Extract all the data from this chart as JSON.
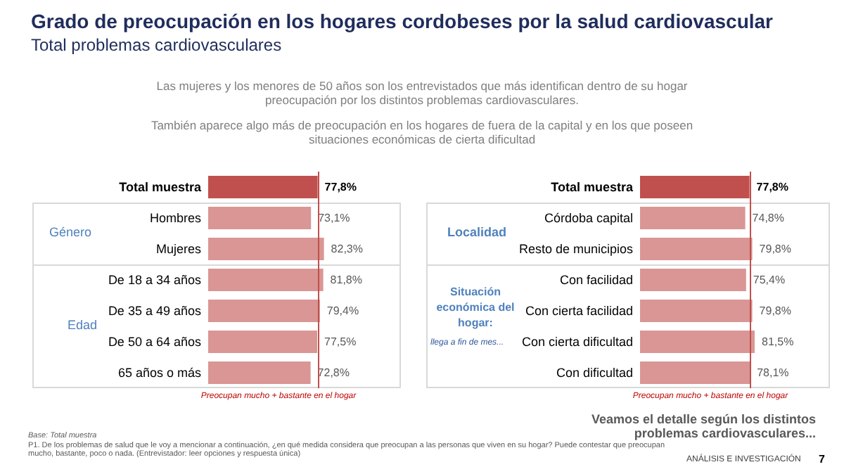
{
  "chart_data": [
    {
      "type": "bar",
      "orientation": "horizontal",
      "title": "Grado de preocupación en los hogares cordobeses por la salud cardiovascular",
      "subtitle": "Total problemas cardiovasculares",
      "categories": [
        "Total muestra",
        "Hombres",
        "Mujeres",
        "De 18 a 34 años",
        "De 35 a 49 años",
        "De 50 a 64 años",
        "65 años o más"
      ],
      "values": [
        77.8,
        73.1,
        82.3,
        81.8,
        79.4,
        77.5,
        72.8
      ],
      "colors": [
        "#c0504d",
        "#d99694",
        "#d99694",
        "#d99694",
        "#d99694",
        "#d99694",
        "#d99694"
      ],
      "value_labels": [
        "77,8%",
        "73,1%",
        "82,3%",
        "81,8%",
        "79,4%",
        "77,5%",
        "72,8%"
      ],
      "tick_labels": "y",
      "xlabel": "Preocupan mucho + bastante en el hogar",
      "ref_lines": [
        {
          "axis": "x",
          "value": 77.8,
          "color": "#c0504d"
        }
      ],
      "annotations": [
        "Las mujeres y los menores de 50 años son los entrevistados que más identifican dentro de su hogar preocupación por los distintos problemas cardiovasculares.",
        "También aparece algo más de preocupación en los hogares de fuera de la capital y en los que poseen situaciones económicas de cierta dificultad",
        "Género",
        "Edad",
        "Base: Total muestra",
        "P1. De los problemas de salud que le voy a mencionar a continuación, ¿en qué medida considera que preocupan a las personas que viven en su hogar? Puede contestar que preocupan mucho, bastante, poco o nada. (Entrevistador: leer opciones y respuesta única)"
      ]
    },
    {
      "type": "bar",
      "orientation": "horizontal",
      "categories": [
        "Total muestra",
        "Córdoba capital",
        "Resto de municipios",
        "Con facilidad",
        "Con cierta facilidad",
        "Con cierta dificultad",
        "Con dificultad"
      ],
      "values": [
        77.8,
        74.8,
        79.8,
        75.4,
        79.8,
        81.5,
        78.1
      ],
      "colors": [
        "#c0504d",
        "#d99694",
        "#d99694",
        "#d99694",
        "#d99694",
        "#d99694",
        "#d99694"
      ],
      "value_labels": [
        "77,8%",
        "74,8%",
        "79,8%",
        "75,4%",
        "79,8%",
        "81,5%",
        "78,1%"
      ],
      "tick_labels": "y",
      "xlabel": "Preocupan mucho + bastante en el hogar",
      "ref_lines": [
        {
          "axis": "x",
          "value": 77.8,
          "color": "#c0504d"
        }
      ],
      "annotations": [
        "Localidad",
        "Situación económica del hogar:",
        "llega a fin de mes...",
        "Veamos el detalle según los distintos problemas cardiovasculares...",
        "ANÁLISIS E INVESTIGACIÓN",
        "7"
      ]
    }
  ]
}
